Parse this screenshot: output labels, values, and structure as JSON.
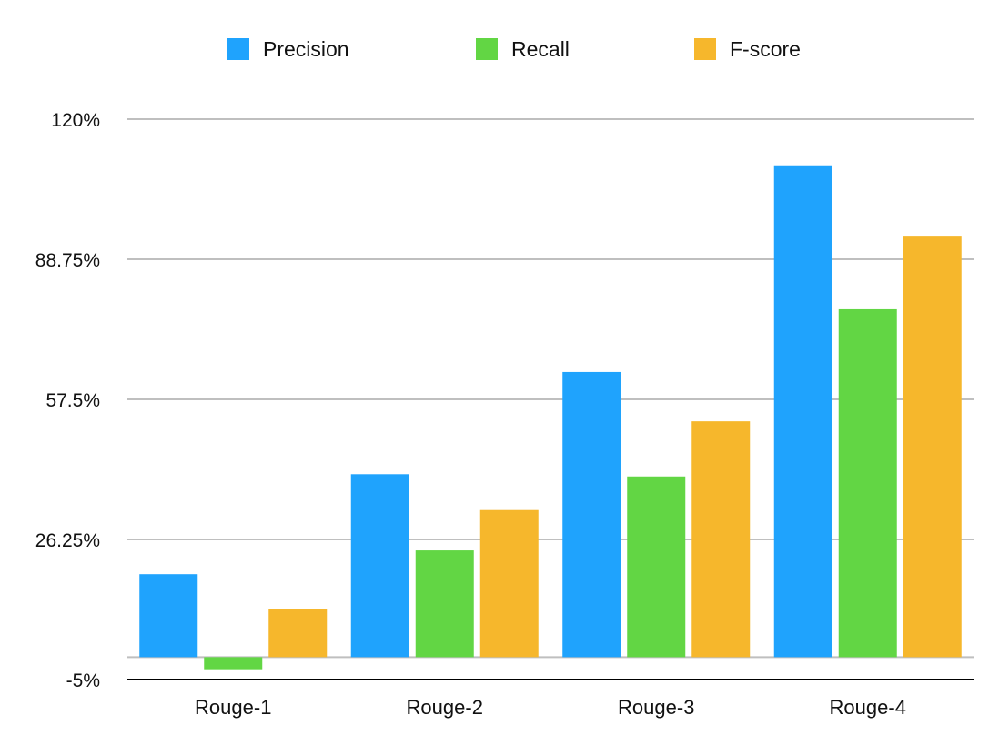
{
  "chart_data": {
    "type": "bar",
    "title": "",
    "xlabel": "",
    "ylabel": "",
    "categories": [
      "Rouge-1",
      "Rouge-2",
      "Rouge-3",
      "Rouge-4"
    ],
    "series": [
      {
        "name": "Precision",
        "color": "#1fa3fd",
        "values": [
          18.5,
          40.8,
          63.6,
          109.7
        ]
      },
      {
        "name": "Recall",
        "color": "#62d644",
        "values": [
          -2.7,
          23.8,
          40.3,
          77.6
        ]
      },
      {
        "name": "F-score",
        "color": "#f6b72c",
        "values": [
          10.8,
          32.8,
          52.6,
          94.0
        ]
      }
    ],
    "ylim": [
      -5,
      120
    ],
    "yticks": [
      -5,
      26.25,
      57.5,
      88.75,
      120
    ],
    "ytick_labels": [
      "-5%",
      "26.25%",
      "57.5%",
      "88.75%",
      "120%"
    ],
    "grid": true,
    "legend_position": "top-center"
  }
}
